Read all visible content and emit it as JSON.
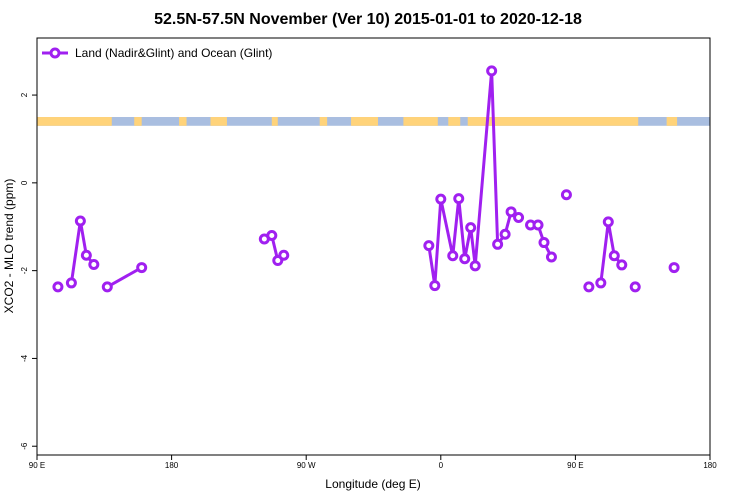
{
  "chart_data": {
    "type": "line",
    "title": "52.5N-57.5N November (Ver 10)   2015-01-01 to 2020-12-18",
    "xlabel": "Longitude (deg E)",
    "ylabel": "XCO2 - MLO trend (ppm)",
    "xlim": [
      90,
      540
    ],
    "ylim": [
      -6.2,
      3.3
    ],
    "x_ticks": [
      {
        "value": 90,
        "label": "90 E"
      },
      {
        "value": 180,
        "label": "180"
      },
      {
        "value": 270,
        "label": "90 W"
      },
      {
        "value": 360,
        "label": "0"
      },
      {
        "value": 450,
        "label": "90 E"
      },
      {
        "value": 540,
        "label": "180"
      }
    ],
    "y_ticks": [
      {
        "value": 2,
        "label": "2"
      },
      {
        "value": 0,
        "label": "0"
      },
      {
        "value": -2,
        "label": "-2"
      },
      {
        "value": -4,
        "label": "-4"
      },
      {
        "value": -6,
        "label": "-6"
      }
    ],
    "grid": false,
    "legend": {
      "position": "top-left"
    },
    "series_color": "#A020F0",
    "land_color": "#FFD37A",
    "ocean_color": "#A9BEE0",
    "surface_strip": {
      "y_range": [
        1.3,
        1.5
      ],
      "land": [
        [
          90,
          140
        ],
        [
          155,
          160
        ],
        [
          185,
          190
        ],
        [
          206,
          217
        ],
        [
          247,
          251
        ],
        [
          279,
          284
        ],
        [
          300,
          318
        ],
        [
          335,
          358
        ],
        [
          365,
          373
        ],
        [
          378,
          492
        ],
        [
          511,
          518
        ]
      ]
    },
    "series": [
      {
        "name": "Land (Nadir&Glint) and Ocean (Glint)",
        "segments": [
          [
            [
              104,
              -2.37
            ]
          ],
          [
            [
              113,
              -2.28
            ],
            [
              119,
              -0.87
            ],
            [
              123,
              -1.65
            ],
            [
              128,
              -1.86
            ]
          ],
          [
            [
              137,
              -2.37
            ],
            [
              160,
              -1.93
            ]
          ],
          [
            [
              242,
              -1.28
            ],
            [
              247,
              -1.2
            ],
            [
              251,
              -1.77
            ],
            [
              255,
              -1.65
            ]
          ],
          [
            [
              352,
              -1.43
            ],
            [
              356,
              -2.34
            ],
            [
              360,
              -0.37
            ],
            [
              368,
              -1.66
            ],
            [
              372,
              -0.36
            ],
            [
              376,
              -1.73
            ],
            [
              380,
              -1.02
            ],
            [
              383,
              -1.89
            ],
            [
              394,
              2.55
            ],
            [
              398,
              -1.4
            ],
            [
              403,
              -1.17
            ],
            [
              407,
              -0.66
            ],
            [
              412,
              -0.79
            ]
          ],
          [
            [
              420,
              -0.96
            ],
            [
              425,
              -0.96
            ],
            [
              429,
              -1.36
            ],
            [
              434,
              -1.69
            ]
          ],
          [
            [
              444,
              -0.27
            ]
          ],
          [
            [
              459,
              -2.37
            ]
          ],
          [
            [
              467,
              -2.28
            ],
            [
              472,
              -0.89
            ],
            [
              476,
              -1.66
            ],
            [
              481,
              -1.87
            ]
          ],
          [
            [
              490,
              -2.37
            ]
          ],
          [
            [
              516,
              -1.93
            ]
          ]
        ]
      }
    ]
  }
}
